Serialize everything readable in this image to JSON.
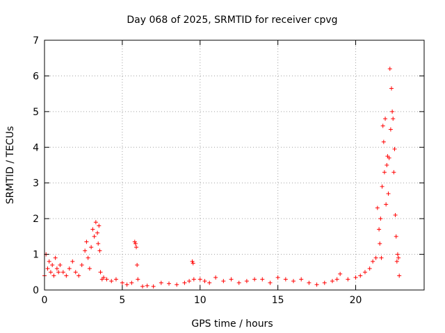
{
  "chart_data": {
    "type": "scatter",
    "title": "Day 068 of 2025, SRMTID for receiver cpvg",
    "xlabel": "GPS time / hours",
    "ylabel": "SRMTID / TECUs",
    "xlim": [
      0,
      24.4
    ],
    "ylim": [
      0,
      7
    ],
    "xticks": [
      0,
      5,
      10,
      15,
      20
    ],
    "yticks": [
      0,
      1,
      2,
      3,
      4,
      5,
      6,
      7
    ],
    "grid": true,
    "legend": "none",
    "marker": "plus",
    "color": "#ff0000",
    "series": [
      {
        "name": "SRMTID",
        "x": [
          0.0,
          0.1,
          0.2,
          0.3,
          0.4,
          0.5,
          0.6,
          0.7,
          0.8,
          0.9,
          1.0,
          1.2,
          1.4,
          1.6,
          1.8,
          2.0,
          2.2,
          2.4,
          2.6,
          2.7,
          2.8,
          2.9,
          3.0,
          3.1,
          3.2,
          3.3,
          3.4,
          3.45,
          3.5,
          3.55,
          3.6,
          3.7,
          3.8,
          4.0,
          4.3,
          4.6,
          5.0,
          5.3,
          5.6,
          5.8,
          5.85,
          5.9,
          5.95,
          6.0,
          6.3,
          6.6,
          7.0,
          7.5,
          8.0,
          8.5,
          9.0,
          9.3,
          9.5,
          9.55,
          9.6,
          10.0,
          10.3,
          10.6,
          11.0,
          11.5,
          12.0,
          12.5,
          13.0,
          13.5,
          14.0,
          14.5,
          15.0,
          15.5,
          16.0,
          16.5,
          17.0,
          17.5,
          18.0,
          18.5,
          18.8,
          19.0,
          19.5,
          20.0,
          20.3,
          20.6,
          20.9,
          21.1,
          21.3,
          21.4,
          21.5,
          21.55,
          21.6,
          21.65,
          21.7,
          21.75,
          21.8,
          21.85,
          21.9,
          21.95,
          22.0,
          22.05,
          22.1,
          22.15,
          22.2,
          22.25,
          22.3,
          22.35,
          22.4,
          22.45,
          22.5,
          22.55,
          22.6,
          22.65,
          22.7,
          22.75,
          22.8
        ],
        "y": [
          0.4,
          1.0,
          0.6,
          0.8,
          0.5,
          0.7,
          0.4,
          0.9,
          0.6,
          0.5,
          0.7,
          0.5,
          0.4,
          0.6,
          0.8,
          0.5,
          0.4,
          0.7,
          1.1,
          1.35,
          0.9,
          0.6,
          1.2,
          1.7,
          1.5,
          1.9,
          1.6,
          1.3,
          1.8,
          1.1,
          0.5,
          0.3,
          0.35,
          0.3,
          0.25,
          0.3,
          0.2,
          0.15,
          0.2,
          1.35,
          1.3,
          1.2,
          0.7,
          0.3,
          0.1,
          0.12,
          0.1,
          0.2,
          0.18,
          0.15,
          0.2,
          0.25,
          0.8,
          0.75,
          0.3,
          0.3,
          0.25,
          0.2,
          0.35,
          0.25,
          0.3,
          0.2,
          0.25,
          0.3,
          0.3,
          0.2,
          0.35,
          0.3,
          0.25,
          0.3,
          0.2,
          0.15,
          0.2,
          0.25,
          0.3,
          0.45,
          0.3,
          0.35,
          0.4,
          0.5,
          0.6,
          0.8,
          0.9,
          2.3,
          1.7,
          1.3,
          2.0,
          0.9,
          2.9,
          4.6,
          4.15,
          3.3,
          4.8,
          2.4,
          3.5,
          3.75,
          2.7,
          3.7,
          6.2,
          4.5,
          5.65,
          5.0,
          4.8,
          3.3,
          3.95,
          2.1,
          1.5,
          0.8,
          1.0,
          0.9,
          0.4
        ]
      }
    ]
  }
}
